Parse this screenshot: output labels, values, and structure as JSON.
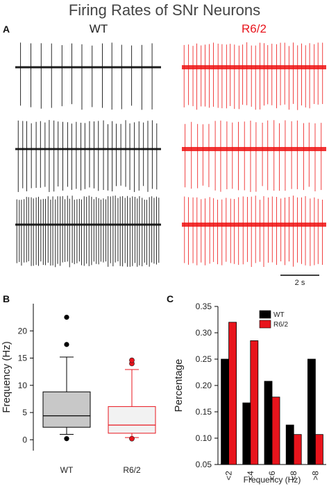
{
  "title": "Firing Rates of SNr Neurons",
  "colors": {
    "wt": "#000000",
    "r62": "#e8141c",
    "r62_box_fill": "#f2f2f2",
    "wt_box_fill": "#c8c8c8",
    "trace_wt": "#111111",
    "trace_r62": "#ee1111"
  },
  "panel_a": {
    "letter": "A",
    "groups": [
      "WT",
      "R6/2"
    ],
    "scale_bar_label": "2 s",
    "traces": [
      {
        "row": 1,
        "group": "WT",
        "spike_count": 14
      },
      {
        "row": 1,
        "group": "R6/2",
        "spike_count": 34
      },
      {
        "row": 2,
        "group": "WT",
        "spike_count": 32
      },
      {
        "row": 2,
        "group": "R6/2",
        "spike_count": 24
      },
      {
        "row": 3,
        "group": "WT",
        "spike_count": 60
      },
      {
        "row": 3,
        "group": "R6/2",
        "spike_count": 34
      }
    ]
  },
  "chart_data": [
    {
      "panel": "B",
      "type": "box",
      "ylabel": "Frequency (Hz)",
      "ylim": [
        -2,
        25
      ],
      "yticks": [
        0,
        5,
        10,
        15,
        20
      ],
      "categories": [
        "WT",
        "R6/2"
      ],
      "boxes": [
        {
          "name": "WT",
          "q1": 2.3,
          "median": 4.4,
          "q3": 8.8,
          "whisker_low": 1.0,
          "whisker_high": 15.2,
          "outliers": [
            0.2,
            17.5,
            22.5
          ]
        },
        {
          "name": "R6/2",
          "q1": 1.2,
          "median": 2.7,
          "q3": 6.1,
          "whisker_low": 0.4,
          "whisker_high": 12.9,
          "outliers": [
            0.2,
            14.0,
            14.6
          ]
        }
      ]
    },
    {
      "panel": "C",
      "type": "bar",
      "xlabel": "Frequency (Hz)",
      "ylabel": "Percentage",
      "ylim": [
        0.05,
        0.35
      ],
      "yticks": [
        0.05,
        0.1,
        0.15,
        0.2,
        0.25,
        0.3,
        0.35
      ],
      "ytick_labels": [
        "0.05",
        "0.10",
        "0.15",
        "0.20",
        "0.25",
        "0.30",
        "0.35"
      ],
      "categories": [
        "<2",
        "<4",
        "<6",
        "<8",
        ">8"
      ],
      "legend": "top-left",
      "series": [
        {
          "name": "WT",
          "values": [
            0.25,
            0.167,
            0.208,
            0.125,
            0.25
          ]
        },
        {
          "name": "R6/2",
          "values": [
            0.32,
            0.285,
            0.178,
            0.107,
            0.107
          ]
        }
      ]
    }
  ]
}
